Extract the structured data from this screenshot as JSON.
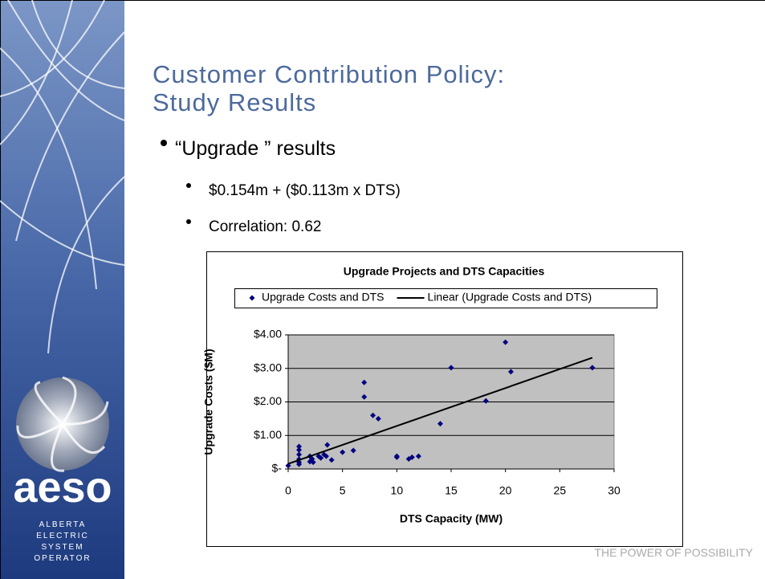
{
  "slide": {
    "title_lines": [
      "Customer Contribution Policy:",
      "Study Results"
    ],
    "bullets": [
      "“Upgrade ” results"
    ],
    "sub_bullets": [
      "$0.154m + ($0.113m x DTS)",
      "Correlation: 0.62"
    ],
    "logo": "aeso",
    "logo_lines": [
      "ALBERTA",
      "ELECTRIC",
      "SYSTEM",
      "OPERATOR"
    ],
    "footer": "THE POWER OF POSSIBILITY"
  },
  "chart_data": {
    "type": "scatter",
    "title": "Upgrade Projects and DTS Capacities",
    "x_label": "DTS Capacity (MW)",
    "y_label": "Upgrade Costs ($M)",
    "xlim": [
      0,
      30
    ],
    "xticks": [
      0,
      5,
      10,
      15,
      20,
      25,
      30
    ],
    "ylim": [
      0,
      4
    ],
    "yticks": [
      {
        "value": 0,
        "label": "$-"
      },
      {
        "value": 1,
        "label": "$1.00"
      },
      {
        "value": 2,
        "label": "$2.00"
      },
      {
        "value": 3,
        "label": "$3.00"
      },
      {
        "value": 4,
        "label": "$4.00"
      }
    ],
    "grid": true,
    "plot_background": "#c0c0c0",
    "series": [
      {
        "name": "Upgrade Costs and DTS",
        "color": "#000080",
        "kind": "points",
        "x": [
          0,
          1,
          1,
          1,
          1,
          1,
          1,
          2,
          2,
          2.2,
          2.3,
          2.8,
          3,
          3.3,
          3.5,
          3.6,
          4,
          5,
          6,
          7,
          7,
          7.8,
          8.3,
          10,
          10,
          11.1,
          11.4,
          12,
          14,
          15,
          18.2,
          20,
          20.5,
          28
        ],
        "values": [
          0.1,
          0.67,
          0.57,
          0.43,
          0.29,
          0.14,
          0.2,
          0.38,
          0.22,
          0.3,
          0.2,
          0.38,
          0.33,
          0.43,
          0.38,
          0.72,
          0.27,
          0.5,
          0.55,
          2.58,
          2.15,
          1.6,
          1.5,
          0.38,
          0.35,
          0.3,
          0.35,
          0.38,
          1.35,
          3.02,
          2.03,
          3.78,
          2.9,
          3.02
        ]
      },
      {
        "name": "Linear (Upgrade Costs and DTS)",
        "color": "#000000",
        "kind": "line",
        "x": [
          0,
          28
        ],
        "values": [
          0.154,
          3.318
        ]
      }
    ]
  }
}
